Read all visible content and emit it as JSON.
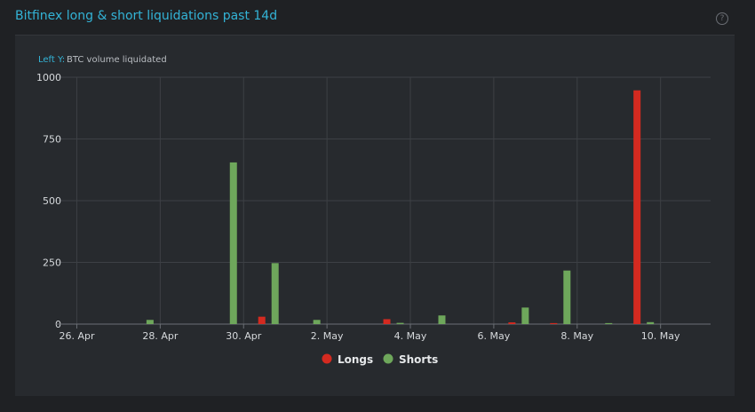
{
  "title": "Bitfinex long & short liquidations past 14d",
  "icons": {
    "help": "help-circle-icon"
  },
  "chart_data": {
    "type": "bar",
    "axis_title_prefix": "Left Y:",
    "ylabel": "BTC volume liquidated",
    "ylim": [
      0,
      1000
    ],
    "yticks": [
      "0",
      "250",
      "500",
      "750",
      "1000"
    ],
    "yticks_values": [
      0,
      250,
      500,
      750,
      1000
    ],
    "categories": [
      "26. Apr",
      "27. Apr",
      "28. Apr",
      "29. Apr",
      "30. Apr",
      "1. May",
      "2. May",
      "3. May",
      "4. May",
      "5. May",
      "6. May",
      "7. May",
      "8. May",
      "9. May",
      "10. May"
    ],
    "xtick_labels": [
      "26. Apr",
      "28. Apr",
      "30. Apr",
      "2. May",
      "4. May",
      "6. May",
      "8. May",
      "10. May"
    ],
    "xtick_indices": [
      0,
      2,
      4,
      6,
      8,
      10,
      12,
      14
    ],
    "grid": true,
    "legend_position": "bottom-center",
    "series": [
      {
        "name": "Longs",
        "color": "#d42a20",
        "values": [
          0,
          0,
          0,
          0,
          30,
          0,
          0,
          20,
          0,
          0,
          7,
          4,
          0,
          947,
          0
        ]
      },
      {
        "name": "Shorts",
        "color": "#6ea75b",
        "values": [
          0,
          17,
          0,
          655,
          247,
          17,
          0,
          5,
          35,
          0,
          67,
          217,
          4,
          8,
          0
        ]
      }
    ]
  }
}
